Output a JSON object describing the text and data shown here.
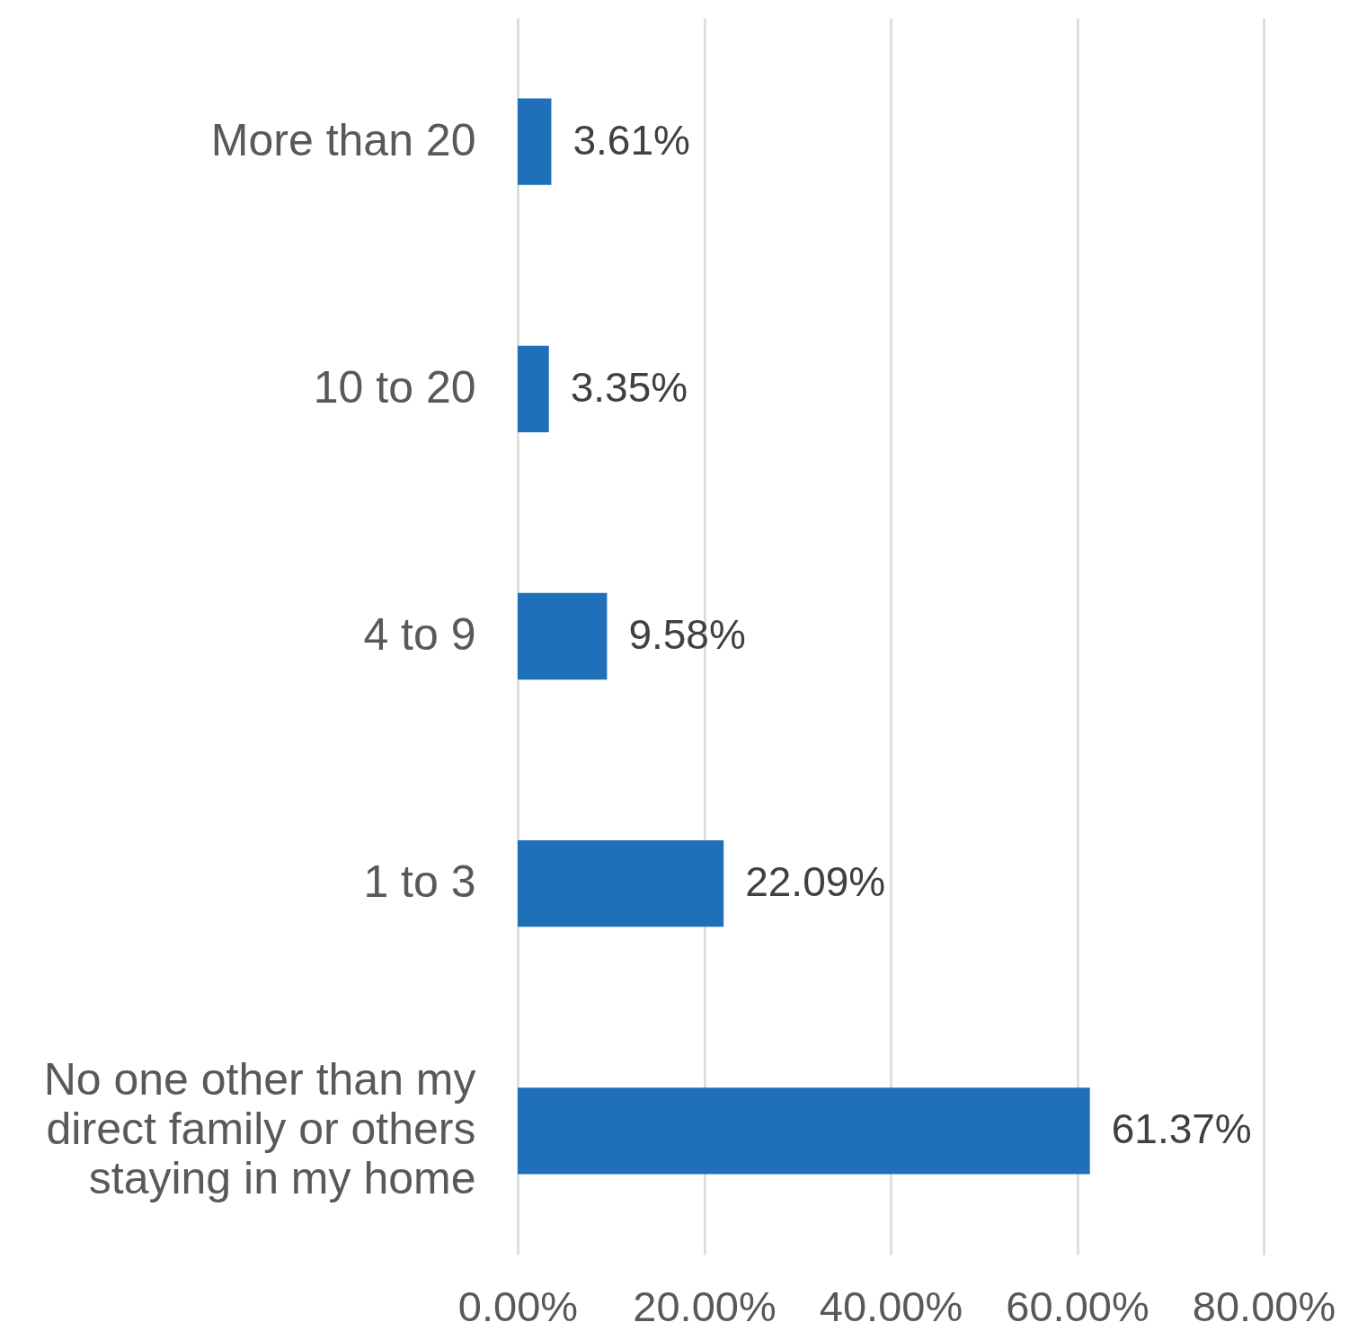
{
  "chart_data": {
    "type": "bar",
    "orientation": "horizontal",
    "categories": [
      "More than 20",
      "10 to 20",
      "4 to 9",
      "1 to 3",
      "No one other than my direct family or others staying in my home"
    ],
    "values": [
      3.61,
      3.35,
      9.58,
      22.09,
      61.37
    ],
    "value_labels": [
      "3.61%",
      "3.35%",
      "9.58%",
      "22.09%",
      "61.37%"
    ],
    "color": "#1f70b8",
    "xlim": [
      0,
      80
    ],
    "xticks": [
      {
        "value": 0,
        "label": "0.00%"
      },
      {
        "value": 20,
        "label": "20.00%"
      },
      {
        "value": 40,
        "label": "40.00%"
      },
      {
        "value": 60,
        "label": "60.00%"
      },
      {
        "value": 80,
        "label": "80.00%"
      }
    ],
    "grid": "x"
  }
}
